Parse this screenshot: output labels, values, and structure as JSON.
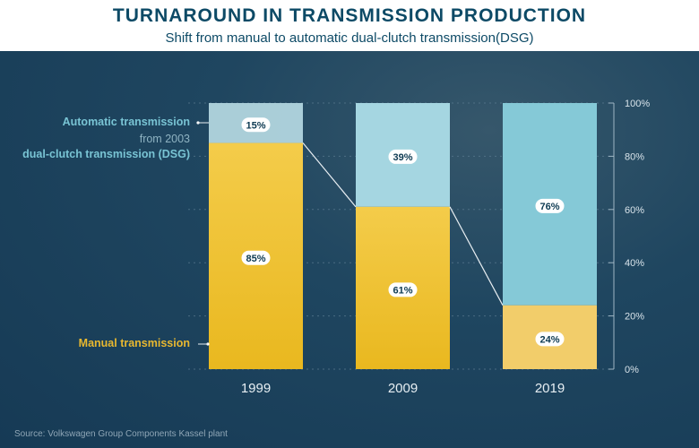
{
  "header": {
    "title": "TURNAROUND IN TRANSMISSION PRODUCTION",
    "subtitle": "Shift from manual to automatic dual-clutch transmission(DSG)"
  },
  "legend": {
    "automatic_line1": "Automatic transmission",
    "automatic_line2": "from 2003",
    "automatic_line3": "dual-clutch transmission (DSG)",
    "manual": "Manual transmission"
  },
  "source": "Source: Volkswagen Group Components Kassel plant",
  "colors": {
    "manual": "#f0c43c",
    "automatic": "#8ccfdc",
    "title": "#0d4a66"
  },
  "chart_data": {
    "type": "bar",
    "stacked": true,
    "categories": [
      "1999",
      "2009",
      "2019"
    ],
    "series": [
      {
        "name": "Manual transmission",
        "values": [
          85,
          61,
          24
        ],
        "labels": [
          "85%",
          "61%",
          "24%"
        ]
      },
      {
        "name": "Automatic transmission",
        "values": [
          15,
          39,
          76
        ],
        "labels": [
          "15%",
          "39%",
          "76%"
        ]
      }
    ],
    "yticks": [
      "0%",
      "20%",
      "40%",
      "60%",
      "80%",
      "100%"
    ],
    "ylim": [
      0,
      100
    ],
    "grid": true
  }
}
